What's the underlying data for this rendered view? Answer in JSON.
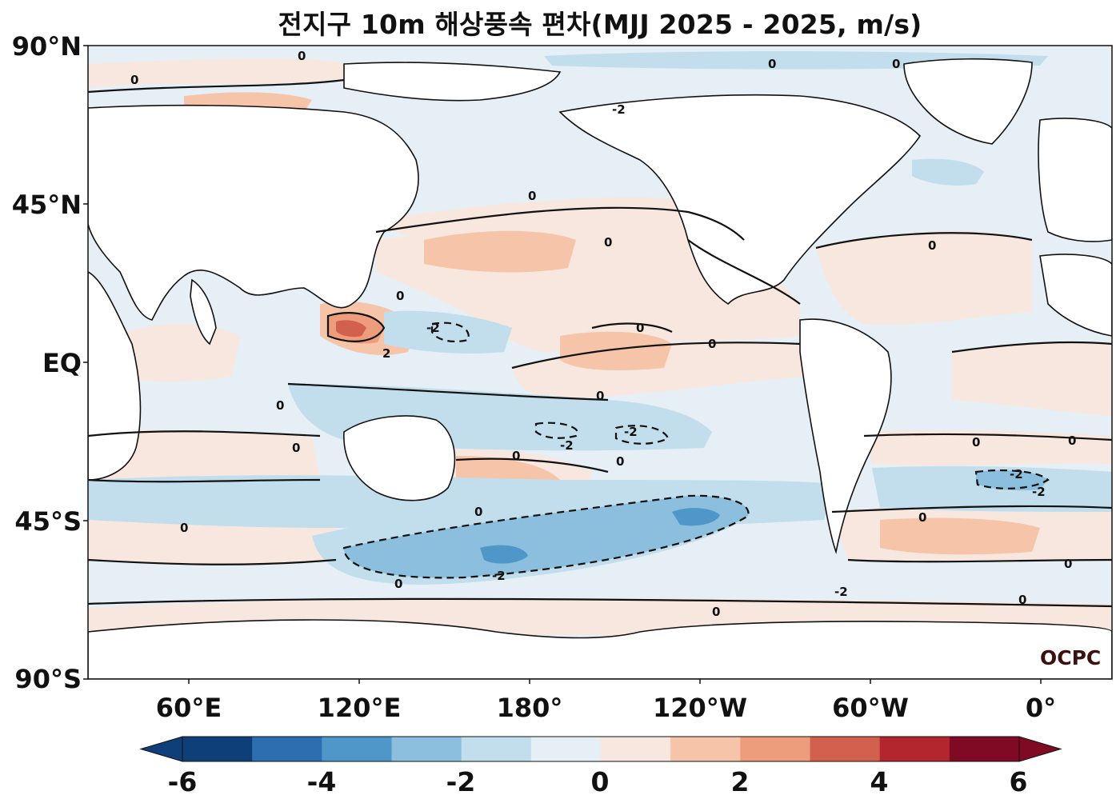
{
  "title": "전지구 10m 해상풍속 편차(MJJ 2025 - 2025, m/s)",
  "credit": "OCPC",
  "lat_ticks": [
    "90°N",
    "45°N",
    "EQ",
    "45°S",
    "90°S"
  ],
  "lon_ticks": [
    "60°E",
    "120°E",
    "180°",
    "120°W",
    "60°W",
    "0°"
  ],
  "colorbar": {
    "ticks": [
      "-6",
      "-4",
      "-2",
      "0",
      "2",
      "4",
      "6"
    ],
    "levels": [
      -6,
      -5,
      -4,
      -3,
      -2,
      -1,
      0,
      1,
      2,
      3,
      4,
      5,
      6
    ],
    "colors": [
      "#0f3f78",
      "#2c6fb0",
      "#4f97c9",
      "#8bbfdd",
      "#c2ddeb",
      "#e5eff5",
      "#f8e7de",
      "#f6c4a9",
      "#ee9d7c",
      "#d2604f",
      "#b4262e",
      "#800a24"
    ],
    "extend": "both"
  },
  "contour_labels": [
    "0",
    "-2",
    "2"
  ]
}
